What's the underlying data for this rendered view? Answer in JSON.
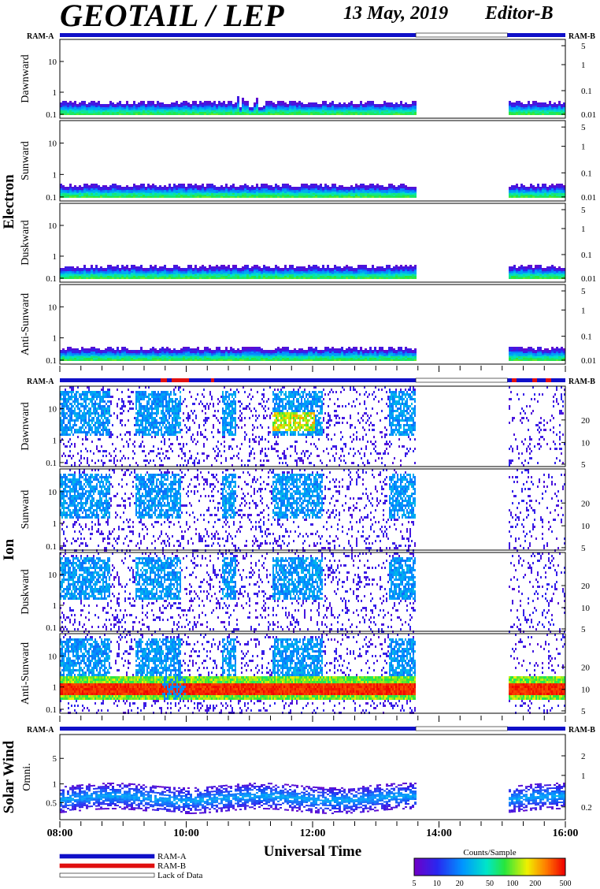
{
  "header": {
    "instrument": "GEOTAIL / LEP",
    "date": "13 May, 2019",
    "editor": "Editor-B"
  },
  "chart_data": {
    "type": "heatmap",
    "x_axis": {
      "title": "Universal Time",
      "ticks": [
        "08:00",
        "10:00",
        "12:00",
        "14:00",
        "16:00"
      ],
      "range": [
        "08:00",
        "16:00"
      ]
    },
    "data_gap": {
      "start": "13:38",
      "end": "15:05"
    },
    "colorbar": {
      "title": "Counts/Sample",
      "ticks": [
        "5",
        "10",
        "20",
        "50",
        "100",
        "200",
        "500"
      ],
      "scale": "log"
    },
    "legend": [
      {
        "label": "RAM-A",
        "color": "#1010c8"
      },
      {
        "label": "RAM-B",
        "color": "#e01010"
      },
      {
        "label": "Lack of Data",
        "color": "#ffffff"
      }
    ],
    "groups": [
      {
        "name": "Electron",
        "ram_left": "RAM-A",
        "ram_right": "RAM-B",
        "panels": [
          {
            "name": "Dawnward",
            "y_ticks_left": [
              "10",
              "1",
              "0.1"
            ],
            "y_ticks_right": [
              "5",
              "1",
              "0.1",
              "0.01"
            ]
          },
          {
            "name": "Sunward",
            "y_ticks_left": [
              "10",
              "1",
              "0.1"
            ],
            "y_ticks_right": [
              "5",
              "1",
              "0.1",
              "0.01"
            ]
          },
          {
            "name": "Duskward",
            "y_ticks_left": [
              "10",
              "1",
              "0.1"
            ],
            "y_ticks_right": [
              "5",
              "1",
              "0.1",
              "0.01"
            ]
          },
          {
            "name": "Anti-Sunward",
            "y_ticks_left": [
              "10",
              "1",
              "0.1"
            ],
            "y_ticks_right": [
              "5",
              "1",
              "0.1",
              "0.01"
            ]
          }
        ]
      },
      {
        "name": "Ion",
        "ram_left": "RAM-A",
        "ram_right": "RAM-B",
        "panels": [
          {
            "name": "Dawnward",
            "y_ticks_left": [
              "10",
              "1",
              "0.1"
            ],
            "y_ticks_right": [
              "20",
              "10",
              "5"
            ]
          },
          {
            "name": "Sunward",
            "y_ticks_left": [
              "10",
              "1",
              "0.1"
            ],
            "y_ticks_right": [
              "20",
              "10",
              "5"
            ]
          },
          {
            "name": "Duskward",
            "y_ticks_left": [
              "10",
              "1",
              "0.1"
            ],
            "y_ticks_right": [
              "20",
              "10",
              "5"
            ]
          },
          {
            "name": "Anti-Sunward",
            "y_ticks_left": [
              "10",
              "1",
              "0.1"
            ],
            "y_ticks_right": [
              "20",
              "10",
              "5"
            ]
          }
        ]
      },
      {
        "name": "Solar Wind",
        "ram_left": "RAM-A",
        "ram_right": "RAM-B",
        "panels": [
          {
            "name": "Omni.",
            "y_ticks_left": [
              "5",
              "1",
              "0.5"
            ],
            "y_ticks_right": [
              "2",
              "1",
              "0.2"
            ]
          }
        ]
      }
    ]
  }
}
